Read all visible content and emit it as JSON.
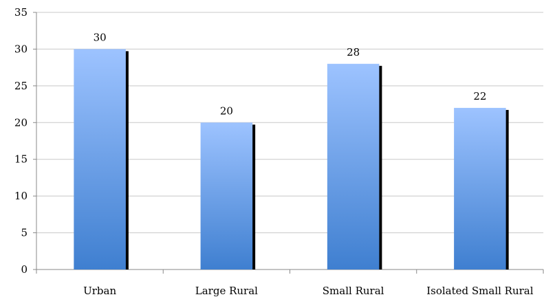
{
  "chart_data": {
    "type": "bar",
    "categories": [
      "Urban",
      "Large Rural",
      "Small Rural",
      "Isolated Small Rural"
    ],
    "values": [
      30,
      20,
      28,
      22
    ],
    "data_labels": [
      "30",
      "20",
      "28",
      "22"
    ],
    "title": "",
    "xlabel": "",
    "ylabel": "",
    "ylim": [
      0,
      35
    ],
    "yticks": [
      "0",
      "5",
      "10",
      "15",
      "20",
      "25",
      "30",
      "35"
    ],
    "grid": true,
    "legend": "none",
    "colors": {
      "bar_top": "#9dc3ff",
      "bar_bottom": "#3f7fd0",
      "bar_shadow": "#000000",
      "grid": "#c8c8c8",
      "axis": "#888888"
    }
  }
}
